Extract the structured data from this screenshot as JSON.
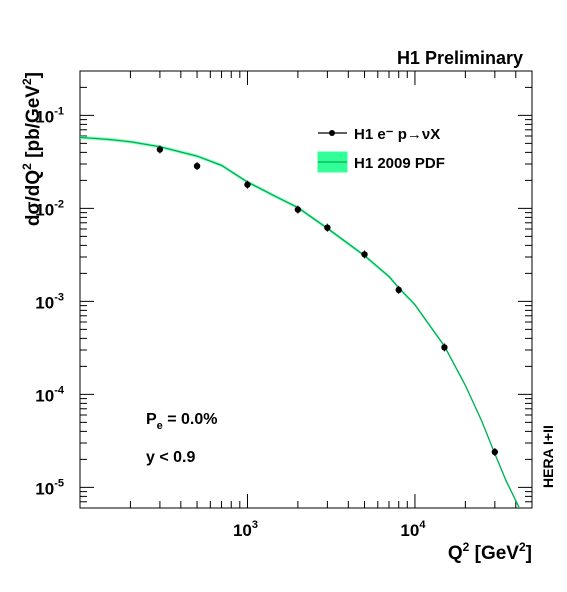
{
  "chart_data": {
    "type": "scatter",
    "title": "H1 Preliminary",
    "xlabel": {
      "base": "Q",
      "sup": "2",
      "rest": " [GeV",
      "sup2": "2",
      "end": "]"
    },
    "ylabel": {
      "d": "dσ/dQ",
      "sup": "2",
      "mid": " [pb/GeV",
      "sup2": "2",
      "end": "]"
    },
    "x_scale": "log",
    "y_scale": "log",
    "xlim": [
      100,
      50000
    ],
    "ylim": [
      6e-06,
      0.3
    ],
    "x_ticks": [
      {
        "value": 1000,
        "base": "10",
        "exp": "3"
      },
      {
        "value": 10000,
        "base": "10",
        "exp": "4"
      }
    ],
    "y_ticks": [
      {
        "value": 0.1,
        "base": "10",
        "exp": "-1"
      },
      {
        "value": 0.01,
        "base": "10",
        "exp": "-2"
      },
      {
        "value": 0.001,
        "base": "10",
        "exp": "-3"
      },
      {
        "value": 0.0001,
        "base": "10",
        "exp": "-4"
      },
      {
        "value": 1e-05,
        "base": "10",
        "exp": "-5"
      }
    ],
    "grid": false,
    "legend_position": "top-right",
    "series": [
      {
        "name": "H1 e⁻ p→νX",
        "kind": "points",
        "color": "#000000",
        "x": [
          300,
          500,
          1000,
          2000,
          3000,
          5000,
          8000,
          15000,
          30000
        ],
        "y": [
          0.043,
          0.0285,
          0.018,
          0.0097,
          0.0062,
          0.0032,
          0.00133,
          0.00032,
          2.4e-05
        ]
      },
      {
        "name": "H1 2009 PDF",
        "kind": "band",
        "color": "#00b050",
        "band_color": "#33ff99",
        "x": [
          100,
          150,
          200,
          300,
          500,
          700,
          1000,
          1500,
          2000,
          3000,
          5000,
          7000,
          8000,
          10000,
          15000,
          20000,
          25000,
          30000,
          35000,
          40000,
          43000
        ],
        "y": [
          0.058,
          0.055,
          0.052,
          0.046,
          0.0365,
          0.029,
          0.0192,
          0.0132,
          0.0102,
          0.0061,
          0.0031,
          0.00185,
          0.0014,
          0.00092,
          0.00033,
          0.000125,
          5.2e-05,
          2.3e-05,
          1.18e-05,
          7.2e-06,
          5.5e-06
        ]
      }
    ],
    "annotations": {
      "pe": {
        "base": "P",
        "sub": "e",
        "rest": " = 0.0%"
      },
      "ycut": "y < 0.9",
      "side_label": "HERA I+II"
    }
  }
}
